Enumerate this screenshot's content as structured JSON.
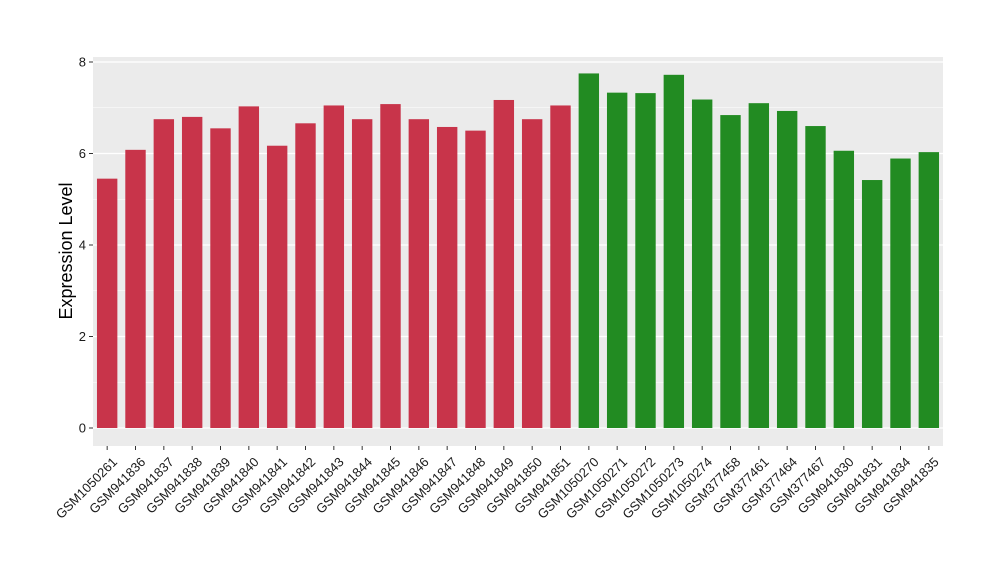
{
  "chart_data": {
    "type": "bar",
    "title": "",
    "xlabel": "",
    "ylabel": "Expression Level",
    "ylim": [
      0,
      8.1
    ],
    "yticks": [
      0,
      2,
      4,
      6,
      8
    ],
    "grid": true,
    "legend": "none",
    "panel_background": "#ebebeb",
    "gridline_color": "#ffffff",
    "categories": [
      "GSM1050261",
      "GSM941836",
      "GSM941837",
      "GSM941838",
      "GSM941839",
      "GSM941840",
      "GSM941841",
      "GSM941842",
      "GSM941843",
      "GSM941844",
      "GSM941845",
      "GSM941846",
      "GSM941847",
      "GSM941848",
      "GSM941849",
      "GSM941850",
      "GSM941851",
      "GSM1050270",
      "GSM1050271",
      "GSM1050272",
      "GSM1050273",
      "GSM1050274",
      "GSM377458",
      "GSM377461",
      "GSM377464",
      "GSM377467",
      "GSM941830",
      "GSM941831",
      "GSM941834",
      "GSM941835"
    ],
    "values": [
      5.45,
      6.08,
      6.75,
      6.8,
      6.55,
      7.03,
      6.17,
      6.66,
      7.05,
      6.75,
      7.08,
      6.75,
      6.58,
      6.5,
      7.17,
      6.75,
      7.05,
      7.75,
      7.33,
      7.32,
      7.72,
      7.18,
      6.84,
      7.1,
      6.93,
      6.6,
      6.06,
      5.42,
      5.89,
      6.03
    ],
    "bar_colors": [
      "#c8344a",
      "#c8344a",
      "#c8344a",
      "#c8344a",
      "#c8344a",
      "#c8344a",
      "#c8344a",
      "#c8344a",
      "#c8344a",
      "#c8344a",
      "#c8344a",
      "#c8344a",
      "#c8344a",
      "#c8344a",
      "#c8344a",
      "#c8344a",
      "#c8344a",
      "#228b22",
      "#228b22",
      "#228b22",
      "#228b22",
      "#228b22",
      "#228b22",
      "#228b22",
      "#228b22",
      "#228b22",
      "#228b22",
      "#228b22",
      "#228b22",
      "#228b22"
    ]
  }
}
